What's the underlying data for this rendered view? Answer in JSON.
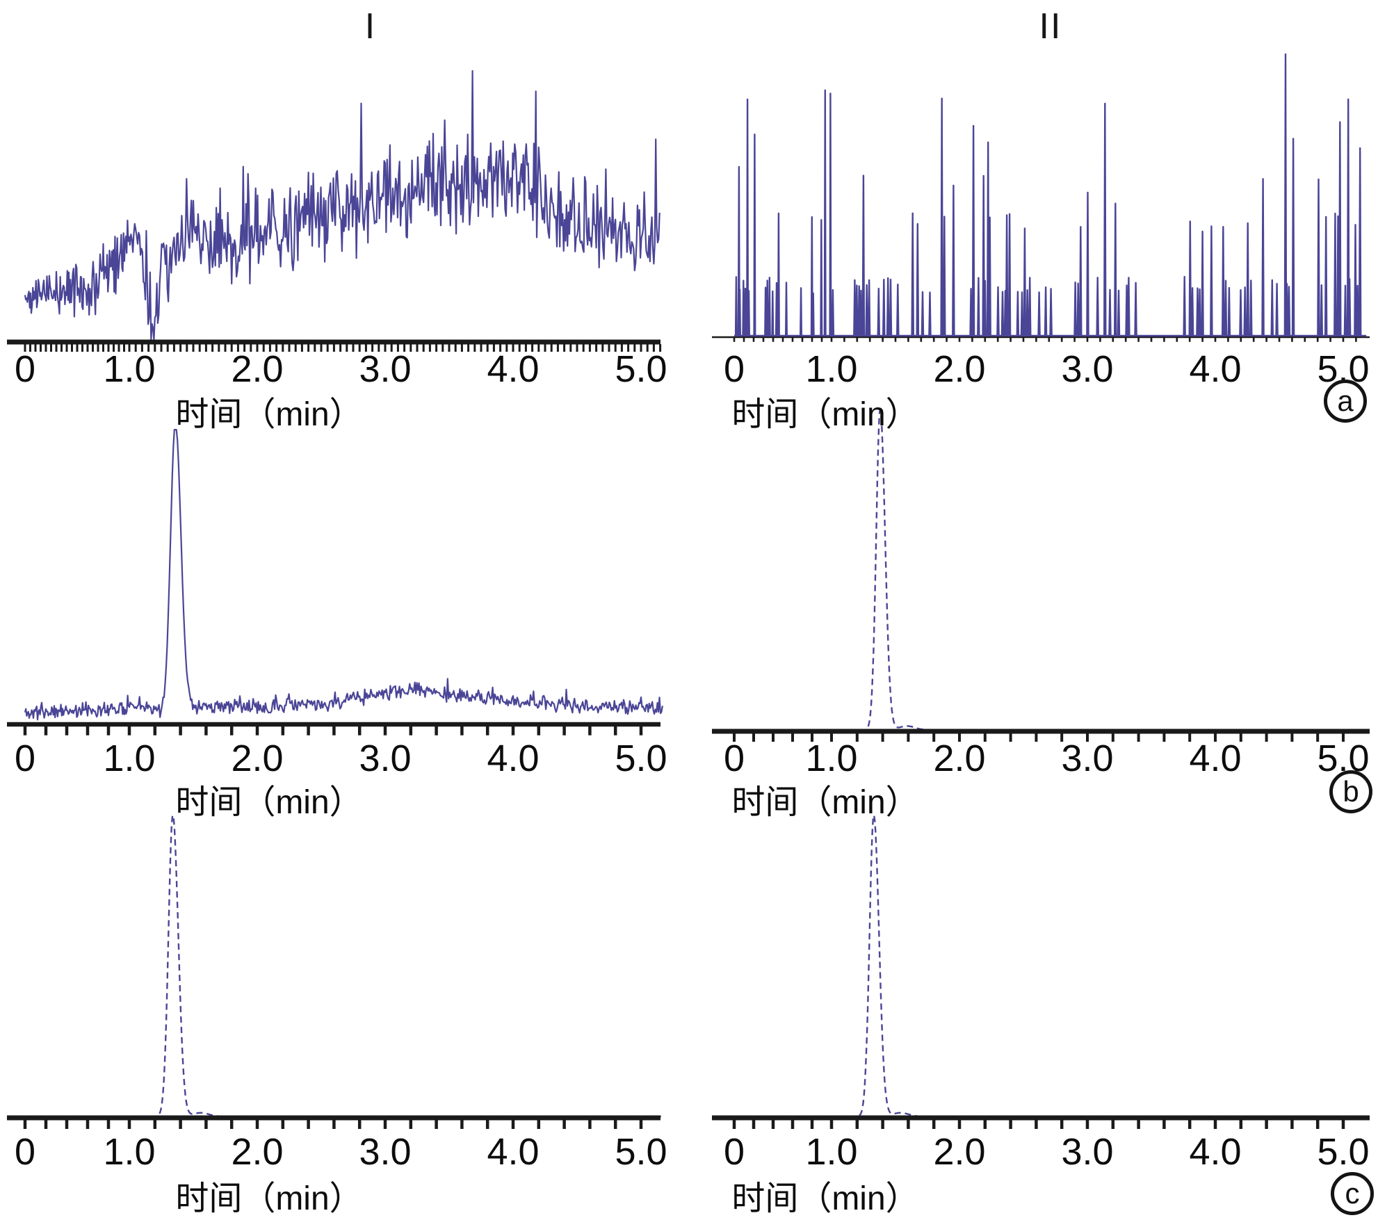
{
  "figure": {
    "column_titles": [
      {
        "id": "I",
        "label": "I"
      },
      {
        "id": "II",
        "label": "II"
      }
    ],
    "row_labels": [
      {
        "id": "a",
        "label": "a"
      },
      {
        "id": "b",
        "label": "b"
      },
      {
        "id": "c",
        "label": "c"
      }
    ],
    "axis": {
      "xlabel": "时间（min）",
      "tick_labels": [
        "0",
        "1.0",
        "2.0",
        "3.0",
        "4.0",
        "5.0"
      ],
      "tick_values": [
        0,
        1,
        2,
        3,
        4,
        5
      ],
      "x_range": [
        0,
        5.2
      ],
      "y_axis_shown": false
    },
    "colors": {
      "trace": "#4a4596",
      "axis": "#1a1a1a",
      "text": "#0c0c0c",
      "background": "#ffffff"
    }
  },
  "chart_data": [
    {
      "id": "I-a",
      "column": "I",
      "row": "a",
      "type": "line",
      "line_style": "solid",
      "kind": "noisy-baseline",
      "x_range": [
        0,
        5.15
      ],
      "xlabel": "时间（min）",
      "x_tick_labels": [
        "0",
        "1.0",
        "2.0",
        "3.0",
        "4.0",
        "5.0"
      ],
      "description": "noisy baseline trace, no chromatographic peak; broad noise hump rising toward 3.0-4.0 min, sharp dip to zero near 1.2 min",
      "envelope": [
        [
          0,
          0.16
        ],
        [
          0.3,
          0.17
        ],
        [
          0.7,
          0.2
        ],
        [
          0.95,
          0.33
        ],
        [
          1.08,
          0.36
        ],
        [
          1.17,
          0.03
        ],
        [
          1.27,
          0.24
        ],
        [
          1.45,
          0.37
        ],
        [
          1.8,
          0.33
        ],
        [
          2.1,
          0.38
        ],
        [
          2.4,
          0.43
        ],
        [
          2.7,
          0.46
        ],
        [
          3.0,
          0.52
        ],
        [
          3.3,
          0.54
        ],
        [
          3.7,
          0.57
        ],
        [
          3.95,
          0.61
        ],
        [
          4.15,
          0.53
        ],
        [
          4.4,
          0.46
        ],
        [
          4.7,
          0.39
        ],
        [
          5.15,
          0.35
        ]
      ],
      "noise_amp": [
        [
          0,
          0.05
        ],
        [
          1.0,
          0.09
        ],
        [
          2.0,
          0.11
        ],
        [
          3.0,
          0.13
        ],
        [
          4.0,
          0.13
        ],
        [
          5.15,
          0.08
        ]
      ],
      "spike_probability": 0.07,
      "spike_max": 0.32,
      "point_step_min": 0.0075,
      "seed": 42
    },
    {
      "id": "II-a",
      "column": "II",
      "row": "a",
      "type": "line",
      "line_style": "solid",
      "kind": "spike-train",
      "x_range": [
        0,
        5.18
      ],
      "xlabel": "时间（min）",
      "x_tick_labels": [
        "0",
        "1.0",
        "2.0",
        "3.0",
        "4.0",
        "5.0"
      ],
      "description": "discrete noise spikes rising from a flat zero baseline; tallest spike near 4.55 min",
      "slot_step_min": 0.019,
      "spike_probability": 0.44,
      "height_levels": [
        {
          "p": 0.6,
          "min": 0.15,
          "max": 0.21
        },
        {
          "p": 0.2,
          "min": 0.37,
          "max": 0.44
        },
        {
          "p": 0.11,
          "min": 0.5,
          "max": 0.57
        },
        {
          "p": 0.065,
          "min": 0.66,
          "max": 0.76
        },
        {
          "p": 0.025,
          "min": 0.82,
          "max": 0.9
        }
      ],
      "special_spikes": [
        [
          0.05,
          0.6
        ],
        [
          3.22,
          0.47
        ],
        [
          4.55,
          1.0
        ],
        [
          4.61,
          0.7
        ],
        [
          5.04,
          0.84
        ]
      ],
      "seed": 7
    },
    {
      "id": "I-b",
      "column": "I",
      "row": "b",
      "type": "line",
      "line_style": "solid",
      "kind": "peak-with-noise",
      "x_range": [
        0,
        5.17
      ],
      "xlabel": "时间（min）",
      "x_tick_labels": [
        "0",
        "1.0",
        "2.0",
        "3.0",
        "4.0",
        "5.0"
      ],
      "description": "single sharp peak at ~1.4 min over a low noisy baseline with a broad small hump near 3.0-3.5 min",
      "peak": {
        "retention_time_min": 1.36,
        "height": 0.985,
        "sigma_min": 0.038,
        "tail_ratio": 1.15
      },
      "envelope": [
        [
          0,
          0.035
        ],
        [
          0.9,
          0.05
        ],
        [
          1.15,
          0.06
        ],
        [
          1.28,
          0.025
        ],
        [
          1.5,
          0.055
        ],
        [
          2.0,
          0.055
        ],
        [
          2.6,
          0.065
        ],
        [
          2.95,
          0.1
        ],
        [
          3.25,
          0.115
        ],
        [
          3.6,
          0.09
        ],
        [
          4.1,
          0.07
        ],
        [
          4.6,
          0.055
        ],
        [
          5.17,
          0.05
        ]
      ],
      "noise_amp_const": 0.018,
      "spike_probability": 0.05,
      "spike_max": 0.05,
      "point_step_min": 0.008,
      "seed": 11
    },
    {
      "id": "II-b",
      "column": "II",
      "row": "b",
      "type": "line",
      "line_style": "dashed",
      "kind": "clean-peak",
      "x_range": [
        0,
        5.18
      ],
      "xlabel": "时间（min）",
      "x_tick_labels": [
        "0",
        "1.0",
        "2.0",
        "3.0",
        "4.0",
        "5.0"
      ],
      "description": "single clean dashed peak on flat zero baseline",
      "peak": {
        "retention_time_min": 1.38,
        "height": 0.99,
        "sigma_min": 0.031,
        "tail_ratio": 1.25
      },
      "foot": {
        "t_offset_min": 0.21,
        "height": 0.012,
        "sigma_min": 0.06
      },
      "seed": 3
    },
    {
      "id": "I-c",
      "column": "I",
      "row": "c",
      "type": "line",
      "line_style": "dashed",
      "kind": "clean-peak",
      "x_range": [
        0,
        5.18
      ],
      "xlabel": "时间（min）",
      "x_tick_labels": [
        "0",
        "1.0",
        "2.0",
        "3.0",
        "4.0",
        "5.0"
      ],
      "description": "single clean dashed peak on flat zero baseline",
      "peak": {
        "retention_time_min": 1.34,
        "height": 0.995,
        "sigma_min": 0.034,
        "tail_ratio": 1.25
      },
      "foot": {
        "t_offset_min": 0.22,
        "height": 0.012,
        "sigma_min": 0.06
      },
      "seed": 5
    },
    {
      "id": "II-c",
      "column": "II",
      "row": "c",
      "type": "line",
      "line_style": "dashed",
      "kind": "clean-peak",
      "x_range": [
        0,
        5.18
      ],
      "xlabel": "时间（min）",
      "x_tick_labels": [
        "0",
        "1.0",
        "2.0",
        "3.0",
        "4.0",
        "5.0"
      ],
      "description": "single clean dashed peak on flat zero baseline",
      "peak": {
        "retention_time_min": 1.33,
        "height": 0.995,
        "sigma_min": 0.033,
        "tail_ratio": 1.25
      },
      "foot": {
        "t_offset_min": 0.21,
        "height": 0.012,
        "sigma_min": 0.06
      },
      "seed": 9
    }
  ]
}
